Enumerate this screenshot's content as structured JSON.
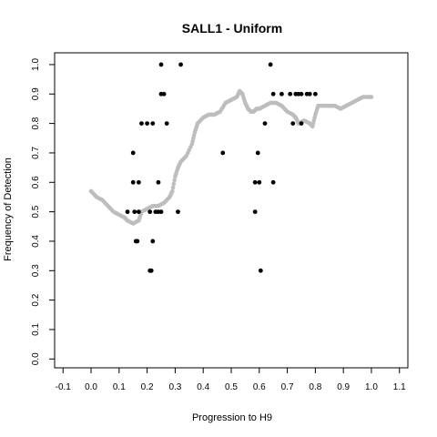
{
  "chart_data": {
    "type": "scatter",
    "title": "SALL1 - Uniform",
    "xlabel": "Progression to H9",
    "ylabel": "Frequency of Detection",
    "xlim": [
      -0.13,
      1.13
    ],
    "ylim": [
      -0.03,
      1.04
    ],
    "x_ticks": [
      -0.1,
      0.0,
      0.1,
      0.2,
      0.3,
      0.4,
      0.5,
      0.6,
      0.7,
      0.8,
      0.9,
      1.0,
      1.1
    ],
    "x_tick_labels": [
      "-0.1",
      "0.0",
      "0.1",
      "0.2",
      "0.3",
      "0.4",
      "0.5",
      "0.6",
      "0.7",
      "0.8",
      "0.9",
      "1.0",
      "1.1"
    ],
    "y_ticks": [
      0.0,
      0.1,
      0.2,
      0.3,
      0.4,
      0.5,
      0.6,
      0.7,
      0.8,
      0.9,
      1.0
    ],
    "y_tick_labels": [
      "0.0",
      "0.1",
      "0.2",
      "0.3",
      "0.4",
      "0.5",
      "0.6",
      "0.7",
      "0.8",
      "0.9",
      "1.0"
    ],
    "grid": false,
    "series": [
      {
        "kind": "points",
        "color": "#000000",
        "points": [
          [
            0.13,
            0.5
          ],
          [
            0.15,
            0.7
          ],
          [
            0.15,
            0.6
          ],
          [
            0.155,
            0.5
          ],
          [
            0.16,
            0.4
          ],
          [
            0.165,
            0.4
          ],
          [
            0.17,
            0.6
          ],
          [
            0.17,
            0.5
          ],
          [
            0.18,
            0.8
          ],
          [
            0.2,
            0.8
          ],
          [
            0.21,
            0.5
          ],
          [
            0.21,
            0.3
          ],
          [
            0.215,
            0.3
          ],
          [
            0.22,
            0.8
          ],
          [
            0.22,
            0.4
          ],
          [
            0.23,
            0.5
          ],
          [
            0.24,
            0.6
          ],
          [
            0.24,
            0.5
          ],
          [
            0.25,
            0.5
          ],
          [
            0.25,
            1.0
          ],
          [
            0.25,
            0.9
          ],
          [
            0.26,
            0.9
          ],
          [
            0.27,
            0.8
          ],
          [
            0.31,
            0.5
          ],
          [
            0.32,
            1.0
          ],
          [
            0.47,
            0.7
          ],
          [
            0.585,
            0.6
          ],
          [
            0.585,
            0.5
          ],
          [
            0.595,
            0.7
          ],
          [
            0.6,
            0.6
          ],
          [
            0.605,
            0.3
          ],
          [
            0.62,
            0.8
          ],
          [
            0.64,
            1.0
          ],
          [
            0.65,
            0.9
          ],
          [
            0.65,
            0.6
          ],
          [
            0.68,
            0.9
          ],
          [
            0.71,
            0.9
          ],
          [
            0.72,
            0.8
          ],
          [
            0.73,
            0.9
          ],
          [
            0.74,
            0.9
          ],
          [
            0.75,
            0.9
          ],
          [
            0.75,
            0.8
          ],
          [
            0.77,
            0.9
          ],
          [
            0.78,
            0.9
          ],
          [
            0.8,
            0.9
          ]
        ]
      },
      {
        "kind": "smoothed",
        "color": "#bdbdbd",
        "points": [
          [
            0.0,
            0.57
          ],
          [
            0.02,
            0.55
          ],
          [
            0.04,
            0.54
          ],
          [
            0.06,
            0.52
          ],
          [
            0.08,
            0.5
          ],
          [
            0.1,
            0.49
          ],
          [
            0.12,
            0.48
          ],
          [
            0.13,
            0.47
          ],
          [
            0.15,
            0.46
          ],
          [
            0.17,
            0.47
          ],
          [
            0.18,
            0.5
          ],
          [
            0.2,
            0.51
          ],
          [
            0.22,
            0.52
          ],
          [
            0.24,
            0.52
          ],
          [
            0.26,
            0.53
          ],
          [
            0.28,
            0.55
          ],
          [
            0.29,
            0.57
          ],
          [
            0.3,
            0.62
          ],
          [
            0.31,
            0.65
          ],
          [
            0.32,
            0.67
          ],
          [
            0.34,
            0.69
          ],
          [
            0.36,
            0.73
          ],
          [
            0.37,
            0.77
          ],
          [
            0.38,
            0.8
          ],
          [
            0.4,
            0.82
          ],
          [
            0.42,
            0.83
          ],
          [
            0.44,
            0.83
          ],
          [
            0.46,
            0.84
          ],
          [
            0.48,
            0.87
          ],
          [
            0.5,
            0.88
          ],
          [
            0.52,
            0.89
          ],
          [
            0.53,
            0.91
          ],
          [
            0.54,
            0.9
          ],
          [
            0.55,
            0.87
          ],
          [
            0.56,
            0.85
          ],
          [
            0.57,
            0.84
          ],
          [
            0.58,
            0.84
          ],
          [
            0.59,
            0.85
          ],
          [
            0.6,
            0.85
          ],
          [
            0.62,
            0.86
          ],
          [
            0.64,
            0.87
          ],
          [
            0.66,
            0.87
          ],
          [
            0.68,
            0.86
          ],
          [
            0.7,
            0.84
          ],
          [
            0.72,
            0.83
          ],
          [
            0.73,
            0.82
          ],
          [
            0.74,
            0.8
          ],
          [
            0.76,
            0.81
          ],
          [
            0.78,
            0.8
          ],
          [
            0.79,
            0.79
          ],
          [
            0.8,
            0.83
          ],
          [
            0.81,
            0.86
          ],
          [
            0.83,
            0.86
          ],
          [
            0.85,
            0.86
          ],
          [
            0.87,
            0.86
          ],
          [
            0.89,
            0.85
          ],
          [
            0.91,
            0.86
          ],
          [
            0.93,
            0.87
          ],
          [
            0.95,
            0.88
          ],
          [
            0.97,
            0.89
          ],
          [
            0.99,
            0.89
          ],
          [
            1.0,
            0.89
          ]
        ]
      }
    ]
  }
}
